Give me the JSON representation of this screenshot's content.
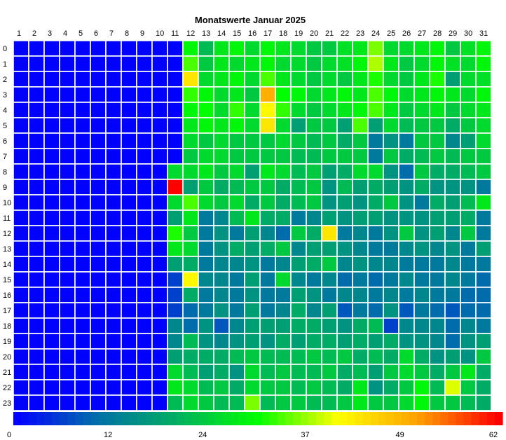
{
  "chart_data": {
    "type": "heatmap",
    "title": "Monatswerte Januar 2025",
    "xlabel": "",
    "ylabel": "",
    "x_categories": [
      "1",
      "2",
      "3",
      "4",
      "5",
      "6",
      "7",
      "8",
      "9",
      "10",
      "11",
      "12",
      "13",
      "14",
      "15",
      "16",
      "17",
      "18",
      "19",
      "20",
      "21",
      "22",
      "23",
      "24",
      "25",
      "26",
      "27",
      "28",
      "29",
      "30",
      "31"
    ],
    "y_categories": [
      "0",
      "1",
      "2",
      "3",
      "4",
      "5",
      "6",
      "7",
      "8",
      "9",
      "10",
      "11",
      "12",
      "13",
      "14",
      "15",
      "16",
      "17",
      "18",
      "19",
      "20",
      "21",
      "22",
      "23"
    ],
    "colorbar": {
      "range": [
        0,
        62
      ],
      "tick_labels": [
        "0",
        "12",
        "24",
        "37",
        "49",
        "62"
      ],
      "tick_values": [
        0,
        12,
        24,
        37,
        49,
        62
      ]
    },
    "colormap": [
      "#0000ff",
      "#0070a8",
      "#00b060",
      "#00ff00",
      "#ffff00",
      "#ffa000",
      "#ff0000"
    ],
    "grid": true,
    "values": [
      [
        0,
        0,
        0,
        0,
        0,
        0,
        0,
        0,
        0,
        0,
        0,
        30,
        22,
        28,
        30,
        26,
        30,
        28,
        26,
        24,
        24,
        27,
        28,
        36,
        26,
        26,
        28,
        30,
        24,
        27,
        30
      ],
      [
        0,
        0,
        0,
        0,
        0,
        0,
        0,
        0,
        0,
        0,
        0,
        34,
        24,
        28,
        26,
        28,
        30,
        26,
        26,
        24,
        26,
        27,
        30,
        38,
        28,
        24,
        26,
        30,
        27,
        26,
        30
      ],
      [
        0,
        0,
        0,
        0,
        0,
        0,
        0,
        0,
        0,
        0,
        0,
        44,
        26,
        28,
        30,
        26,
        34,
        28,
        26,
        24,
        26,
        24,
        28,
        32,
        26,
        24,
        28,
        32,
        18,
        26,
        27
      ],
      [
        0,
        0,
        0,
        0,
        0,
        0,
        0,
        0,
        0,
        0,
        0,
        33,
        30,
        26,
        28,
        24,
        50,
        31,
        30,
        26,
        28,
        30,
        28,
        34,
        30,
        26,
        28,
        30,
        28,
        26,
        30
      ],
      [
        0,
        0,
        0,
        0,
        0,
        0,
        0,
        0,
        0,
        0,
        0,
        30,
        31,
        26,
        33,
        26,
        42,
        33,
        26,
        24,
        26,
        28,
        30,
        34,
        28,
        24,
        26,
        28,
        24,
        26,
        28
      ],
      [
        0,
        0,
        0,
        0,
        0,
        0,
        0,
        0,
        0,
        0,
        0,
        28,
        30,
        28,
        30,
        26,
        44,
        26,
        18,
        24,
        24,
        18,
        34,
        18,
        26,
        22,
        24,
        24,
        20,
        24,
        26
      ],
      [
        0,
        0,
        0,
        0,
        0,
        0,
        0,
        0,
        0,
        0,
        0,
        26,
        24,
        26,
        24,
        24,
        24,
        26,
        24,
        22,
        24,
        20,
        24,
        12,
        16,
        12,
        24,
        24,
        14,
        18,
        26
      ],
      [
        0,
        0,
        0,
        0,
        0,
        0,
        0,
        0,
        0,
        0,
        0,
        24,
        26,
        26,
        24,
        24,
        24,
        24,
        22,
        22,
        24,
        24,
        24,
        12,
        24,
        20,
        22,
        24,
        22,
        24,
        24
      ],
      [
        0,
        0,
        0,
        0,
        0,
        0,
        0,
        0,
        0,
        0,
        26,
        26,
        28,
        24,
        26,
        18,
        28,
        26,
        22,
        24,
        18,
        20,
        26,
        26,
        16,
        10,
        24,
        20,
        20,
        22,
        24
      ],
      [
        0,
        0,
        0,
        0,
        0,
        0,
        0,
        0,
        0,
        0,
        62,
        18,
        24,
        20,
        22,
        24,
        24,
        20,
        22,
        24,
        16,
        22,
        18,
        20,
        18,
        16,
        20,
        16,
        16,
        16,
        12
      ],
      [
        0,
        0,
        0,
        0,
        0,
        0,
        0,
        0,
        0,
        0,
        26,
        34,
        26,
        24,
        26,
        20,
        24,
        20,
        22,
        24,
        16,
        18,
        16,
        20,
        24,
        16,
        12,
        20,
        18,
        22,
        28
      ],
      [
        0,
        0,
        0,
        0,
        0,
        0,
        0,
        0,
        0,
        0,
        18,
        28,
        12,
        14,
        22,
        28,
        20,
        20,
        12,
        14,
        18,
        16,
        18,
        18,
        16,
        16,
        16,
        18,
        18,
        20,
        12
      ],
      [
        0,
        0,
        0,
        0,
        0,
        0,
        0,
        0,
        0,
        0,
        32,
        24,
        12,
        16,
        12,
        18,
        14,
        10,
        24,
        20,
        44,
        12,
        14,
        12,
        16,
        24,
        16,
        18,
        14,
        24,
        12
      ],
      [
        0,
        0,
        0,
        0,
        0,
        0,
        0,
        0,
        0,
        0,
        28,
        26,
        12,
        16,
        20,
        18,
        20,
        24,
        14,
        18,
        18,
        16,
        14,
        12,
        12,
        14,
        16,
        14,
        16,
        12,
        18
      ],
      [
        0,
        0,
        0,
        0,
        0,
        0,
        0,
        0,
        0,
        0,
        18,
        20,
        12,
        14,
        14,
        16,
        12,
        14,
        18,
        20,
        24,
        14,
        16,
        14,
        14,
        12,
        12,
        12,
        14,
        12,
        12
      ],
      [
        0,
        0,
        0,
        0,
        0,
        0,
        0,
        0,
        0,
        0,
        6,
        42,
        14,
        14,
        12,
        18,
        12,
        26,
        14,
        12,
        14,
        10,
        12,
        10,
        12,
        14,
        12,
        12,
        14,
        12,
        10
      ],
      [
        0,
        0,
        0,
        0,
        0,
        0,
        0,
        0,
        0,
        0,
        6,
        20,
        12,
        14,
        12,
        16,
        12,
        12,
        18,
        16,
        12,
        14,
        14,
        12,
        14,
        12,
        14,
        12,
        12,
        10,
        10
      ],
      [
        0,
        0,
        0,
        0,
        0,
        0,
        0,
        0,
        0,
        0,
        6,
        10,
        12,
        16,
        12,
        18,
        12,
        14,
        20,
        14,
        18,
        8,
        12,
        10,
        16,
        8,
        12,
        10,
        8,
        10,
        10
      ],
      [
        0,
        0,
        0,
        0,
        0,
        0,
        0,
        0,
        0,
        0,
        14,
        10,
        16,
        8,
        14,
        18,
        18,
        18,
        20,
        20,
        18,
        16,
        20,
        22,
        6,
        14,
        14,
        14,
        10,
        14,
        12
      ],
      [
        0,
        0,
        0,
        0,
        0,
        0,
        0,
        0,
        0,
        0,
        14,
        22,
        16,
        14,
        16,
        18,
        16,
        20,
        18,
        20,
        20,
        18,
        20,
        18,
        20,
        16,
        16,
        14,
        10,
        16,
        18
      ],
      [
        0,
        0,
        0,
        0,
        0,
        0,
        0,
        0,
        0,
        0,
        18,
        20,
        20,
        20,
        22,
        24,
        22,
        22,
        22,
        24,
        22,
        24,
        20,
        22,
        20,
        26,
        20,
        16,
        18,
        16,
        24
      ],
      [
        0,
        0,
        0,
        0,
        0,
        0,
        0,
        0,
        0,
        0,
        26,
        22,
        18,
        20,
        16,
        26,
        22,
        24,
        22,
        22,
        24,
        20,
        22,
        18,
        24,
        26,
        24,
        20,
        24,
        28,
        20
      ],
      [
        0,
        0,
        0,
        0,
        0,
        0,
        0,
        0,
        0,
        0,
        28,
        26,
        22,
        24,
        20,
        26,
        24,
        24,
        22,
        24,
        22,
        20,
        28,
        16,
        20,
        24,
        30,
        22,
        40,
        24,
        20
      ],
      [
        0,
        0,
        0,
        0,
        0,
        0,
        0,
        0,
        0,
        0,
        22,
        26,
        24,
        22,
        22,
        36,
        22,
        24,
        24,
        22,
        22,
        24,
        28,
        24,
        24,
        26,
        30,
        24,
        24,
        22,
        20
      ]
    ]
  }
}
